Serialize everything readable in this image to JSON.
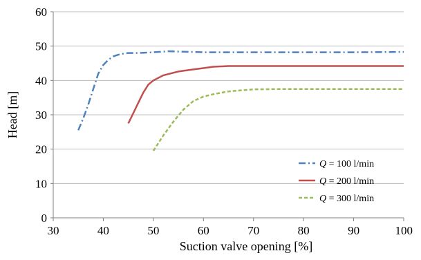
{
  "chart_data": {
    "type": "line",
    "title": "",
    "xlabel": "Suction valve opening [%]",
    "ylabel": "Head [m]",
    "xlim": [
      30,
      100
    ],
    "ylim": [
      0,
      60
    ],
    "xticks": [
      30,
      40,
      50,
      60,
      70,
      80,
      90,
      100
    ],
    "yticks": [
      0,
      10,
      20,
      30,
      40,
      50,
      60
    ],
    "grid": "horizontal",
    "legend_position": "bottom-right",
    "series": [
      {
        "name_var": "Q",
        "name_rest": " = 100  l/min",
        "color": "#4f81bd",
        "style": "dash-dot",
        "x": [
          35,
          36,
          37,
          38,
          39,
          40,
          41,
          42,
          43,
          44,
          45,
          47,
          50,
          53,
          55,
          60,
          70,
          80,
          90,
          100
        ],
        "y": [
          25.5,
          29,
          33,
          37.5,
          42,
          44.5,
          46,
          47,
          47.5,
          47.8,
          48,
          48,
          48.2,
          48.5,
          48.4,
          48.2,
          48.2,
          48.2,
          48.2,
          48.3
        ]
      },
      {
        "name_var": "Q",
        "name_rest": " = 200  l/min",
        "color": "#c0504d",
        "style": "solid",
        "x": [
          45,
          46,
          47,
          48,
          49,
          50,
          52,
          55,
          58,
          60,
          62,
          65,
          70,
          80,
          90,
          100
        ],
        "y": [
          27.5,
          30.5,
          33.5,
          36.5,
          38.8,
          40,
          41.5,
          42.6,
          43.2,
          43.6,
          44,
          44.2,
          44.2,
          44.2,
          44.2,
          44.2
        ]
      },
      {
        "name_var": "Q",
        "name_rest": " = 300  l/min",
        "color": "#9bbb59",
        "style": "dashed",
        "x": [
          50,
          52,
          54,
          56,
          58,
          60,
          62,
          65,
          70,
          75,
          80,
          90,
          100
        ],
        "y": [
          19.5,
          24,
          28,
          31.5,
          34,
          35.3,
          36,
          36.8,
          37.4,
          37.5,
          37.5,
          37.5,
          37.5
        ]
      }
    ]
  }
}
